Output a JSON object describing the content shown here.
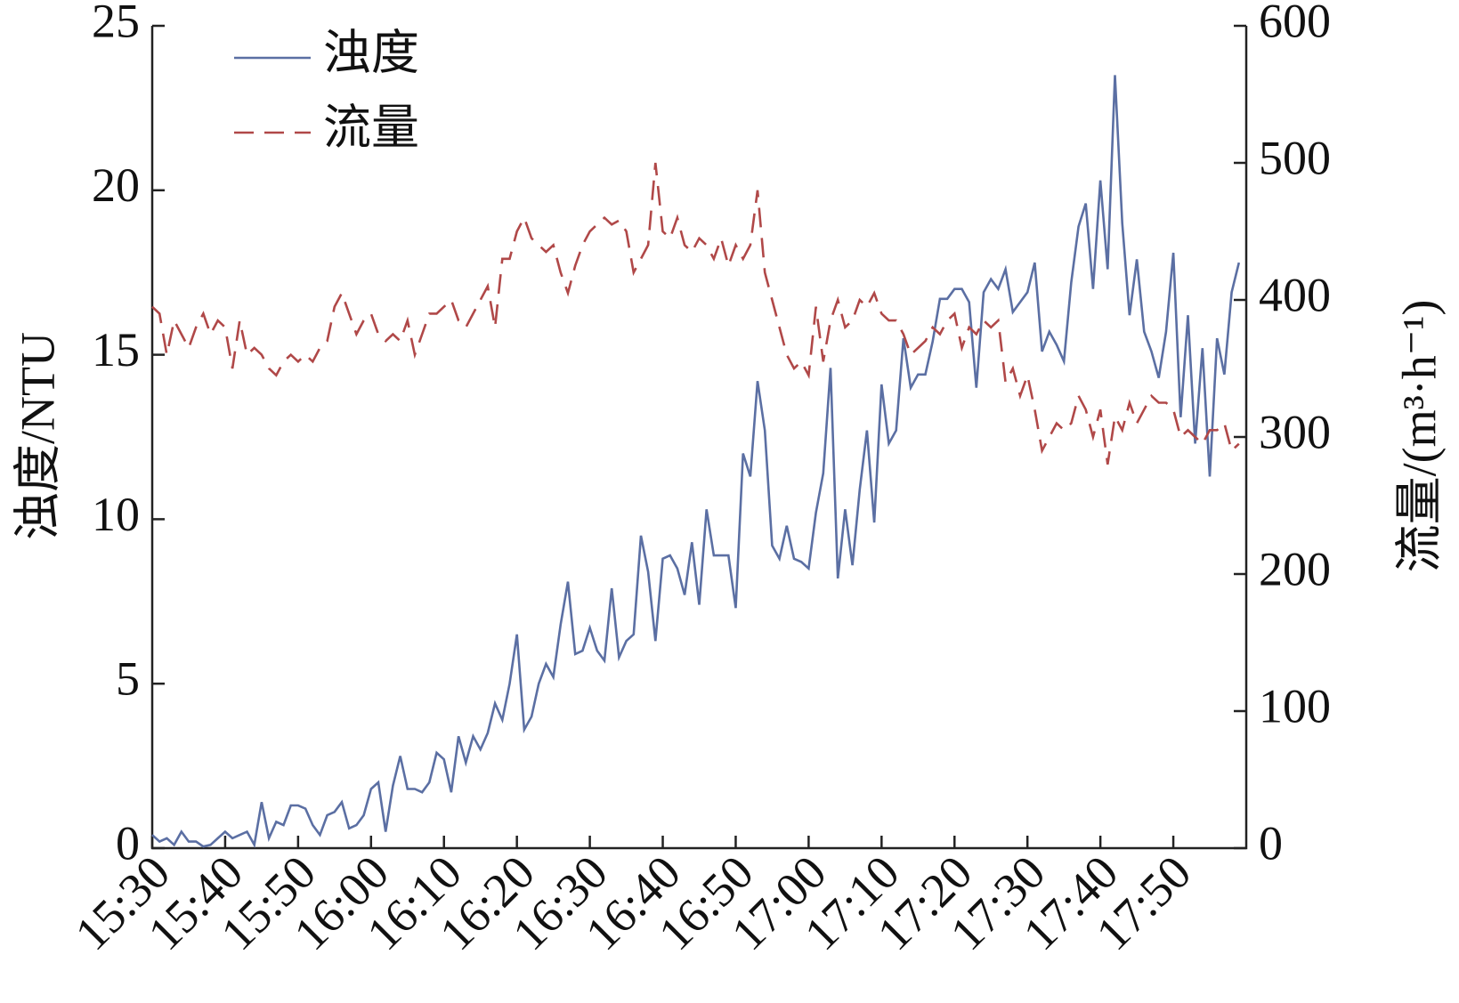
{
  "chart_data": {
    "type": "line",
    "x": [
      "15:30",
      "15:31",
      "15:32",
      "15:33",
      "15:34",
      "15:35",
      "15:36",
      "15:37",
      "15:38",
      "15:39",
      "15:40",
      "15:41",
      "15:42",
      "15:43",
      "15:44",
      "15:45",
      "15:46",
      "15:47",
      "15:48",
      "15:49",
      "15:50",
      "15:51",
      "15:52",
      "15:53",
      "15:54",
      "15:55",
      "15:56",
      "15:57",
      "15:58",
      "15:59",
      "16:00",
      "16:01",
      "16:02",
      "16:03",
      "16:04",
      "16:05",
      "16:06",
      "16:07",
      "16:08",
      "16:09",
      "16:10",
      "16:11",
      "16:12",
      "16:13",
      "16:14",
      "16:15",
      "16:16",
      "16:17",
      "16:18",
      "16:19",
      "16:20",
      "16:21",
      "16:22",
      "16:23",
      "16:24",
      "16:25",
      "16:26",
      "16:27",
      "16:28",
      "16:29",
      "16:30",
      "16:31",
      "16:32",
      "16:33",
      "16:34",
      "16:35",
      "16:36",
      "16:37",
      "16:38",
      "16:39",
      "16:40",
      "16:41",
      "16:42",
      "16:43",
      "16:44",
      "16:45",
      "16:46",
      "16:47",
      "16:48",
      "16:49",
      "16:50",
      "16:51",
      "16:52",
      "16:53",
      "16:54",
      "16:55",
      "16:56",
      "16:57",
      "16:58",
      "16:59",
      "17:00",
      "17:01",
      "17:02",
      "17:03",
      "17:04",
      "17:05",
      "17:06",
      "17:07",
      "17:08",
      "17:09",
      "17:10",
      "17:11",
      "17:12",
      "17:13",
      "17:14",
      "17:15",
      "17:16",
      "17:17",
      "17:18",
      "17:19",
      "17:20",
      "17:21",
      "17:22",
      "17:23",
      "17:24",
      "17:25",
      "17:26",
      "17:27",
      "17:28",
      "17:29",
      "17:30",
      "17:31",
      "17:32",
      "17:33",
      "17:34",
      "17:35",
      "17:36",
      "17:37",
      "17:38",
      "17:39",
      "17:40",
      "17:41",
      "17:42",
      "17:43",
      "17:44",
      "17:45",
      "17:46",
      "17:47",
      "17:48",
      "17:49",
      "17:50",
      "17:51",
      "17:52",
      "17:53",
      "17:54",
      "17:55",
      "17:56",
      "17:57",
      "17:58",
      "17:59"
    ],
    "series": [
      {
        "name": "浊度",
        "color": "#5b6fa3",
        "dash": false,
        "values": [
          0.4,
          0.2,
          0.3,
          0.1,
          0.5,
          0.2,
          0.2,
          0.05,
          0.1,
          0.3,
          0.5,
          0.3,
          0.4,
          0.5,
          0.1,
          1.4,
          0.3,
          0.8,
          0.7,
          1.3,
          1.3,
          1.2,
          0.7,
          0.4,
          1.0,
          1.1,
          1.4,
          0.6,
          0.7,
          1.0,
          1.8,
          2.0,
          0.5,
          1.9,
          2.8,
          1.8,
          1.8,
          1.7,
          2.0,
          2.9,
          2.7,
          1.7,
          3.4,
          2.6,
          3.4,
          3.0,
          3.5,
          4.4,
          3.9,
          5.0,
          6.5,
          3.6,
          4.0,
          5.0,
          5.6,
          5.2,
          6.8,
          8.1,
          5.9,
          6.0,
          6.7,
          6.0,
          5.7,
          7.9,
          5.8,
          6.3,
          6.5,
          9.5,
          8.4,
          6.3,
          8.8,
          8.9,
          8.5,
          7.7,
          9.3,
          7.4,
          10.3,
          8.9,
          8.9,
          8.9,
          7.3,
          12.0,
          11.3,
          14.2,
          12.7,
          9.2,
          8.8,
          9.8,
          8.8,
          8.7,
          8.5,
          10.2,
          11.4,
          14.6,
          8.2,
          10.3,
          8.6,
          10.9,
          12.7,
          9.9,
          14.1,
          12.3,
          12.7,
          15.5,
          14.0,
          14.4,
          14.4,
          15.4,
          16.7,
          16.7,
          17.0,
          17.0,
          16.6,
          14.0,
          16.9,
          17.3,
          17.0,
          17.6,
          16.3,
          16.6,
          16.9,
          17.8,
          15.1,
          15.7,
          15.3,
          14.8,
          17.2,
          18.9,
          19.6,
          17.0,
          20.3,
          17.6,
          23.5,
          19.0,
          16.2,
          17.9,
          15.7,
          15.1,
          14.3,
          15.7,
          18.1,
          13.1,
          16.2,
          12.3,
          15.2,
          11.3,
          15.5,
          14.4,
          16.9,
          17.8
        ]
      },
      {
        "name": "流量",
        "color": "#b04848",
        "dash": true,
        "axis": "y2",
        "values": [
          395,
          390,
          360,
          385,
          375,
          365,
          380,
          390,
          375,
          385,
          380,
          350,
          385,
          360,
          365,
          360,
          350,
          345,
          355,
          360,
          355,
          360,
          355,
          365,
          370,
          395,
          405,
          390,
          375,
          385,
          390,
          375,
          370,
          375,
          370,
          385,
          360,
          375,
          390,
          390,
          395,
          400,
          385,
          380,
          390,
          400,
          410,
          380,
          430,
          430,
          450,
          460,
          445,
          440,
          435,
          440,
          420,
          405,
          425,
          440,
          450,
          455,
          460,
          455,
          458,
          450,
          420,
          430,
          440,
          500,
          450,
          445,
          460,
          440,
          435,
          445,
          440,
          430,
          445,
          425,
          440,
          430,
          440,
          480,
          420,
          400,
          380,
          360,
          350,
          355,
          345,
          395,
          355,
          385,
          400,
          380,
          385,
          400,
          395,
          405,
          390,
          385,
          385,
          375,
          360,
          365,
          370,
          380,
          375,
          385,
          390,
          365,
          380,
          375,
          385,
          380,
          385,
          340,
          350,
          330,
          345,
          320,
          290,
          300,
          310,
          305,
          310,
          330,
          320,
          300,
          320,
          280,
          315,
          305,
          325,
          310,
          320,
          330,
          325,
          325,
          320,
          300,
          305,
          300,
          295,
          305,
          305,
          310,
          290,
          295
        ]
      }
    ],
    "xlim": [
      "15:30",
      "18:00"
    ],
    "xticks": [
      "15:30",
      "15:40",
      "15:50",
      "16:00",
      "16:10",
      "16:20",
      "16:30",
      "16:40",
      "16:50",
      "17:00",
      "17:10",
      "17:20",
      "17:30",
      "17:40",
      "17:50"
    ],
    "ylabel": "浊度/NTU",
    "ylim": [
      0,
      25
    ],
    "yticks": [
      0,
      5,
      10,
      15,
      20,
      25
    ],
    "y2label": "流量/(m³·h⁻¹)",
    "y2lim": [
      0,
      600
    ],
    "y2ticks": [
      0,
      100,
      200,
      300,
      400,
      500,
      600
    ],
    "legend": "upper-left",
    "grid": false
  }
}
